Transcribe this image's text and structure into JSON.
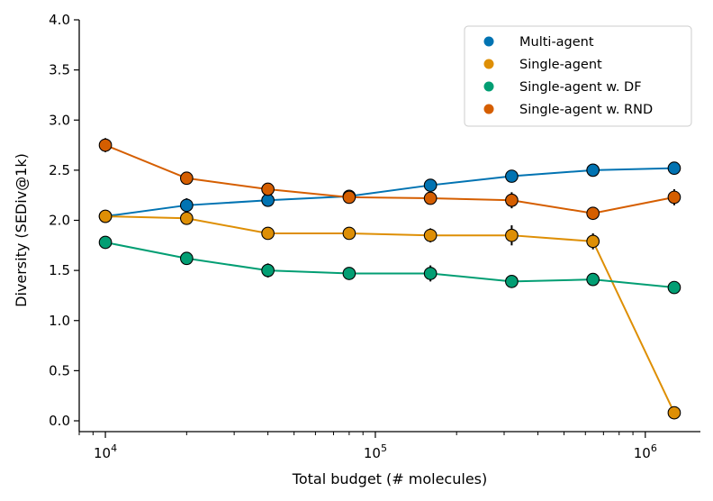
{
  "chart_data": {
    "type": "line",
    "title": "",
    "xlabel": "Total budget (# molecules)",
    "ylabel": "Diversity (SEDiv@1k)",
    "xscale": "log",
    "xlim": [
      8000,
      1600000
    ],
    "ylim": [
      -0.1,
      4.0
    ],
    "x": [
      10000,
      20000,
      40000,
      80000,
      160000,
      320000,
      640000,
      1280000
    ],
    "x_ticks": [
      {
        "value": 10000,
        "base": "10",
        "exp": "4"
      },
      {
        "value": 100000,
        "base": "10",
        "exp": "5"
      },
      {
        "value": 1000000,
        "base": "10",
        "exp": "6"
      }
    ],
    "y_ticks": [
      "0.0",
      "0.5",
      "1.0",
      "1.5",
      "2.0",
      "2.5",
      "3.0",
      "3.5",
      "4.0"
    ],
    "legend_position": "top-right",
    "series": [
      {
        "name": "Multi-agent",
        "color": "#0173b2",
        "values": [
          2.04,
          2.15,
          2.2,
          2.24,
          2.35,
          2.44,
          2.5,
          2.52
        ],
        "errors": [
          0.03,
          0.07,
          0.06,
          0.04,
          0.04,
          0.04,
          0.05,
          0.04
        ]
      },
      {
        "name": "Single-agent",
        "color": "#de8f05",
        "values": [
          2.04,
          2.02,
          1.87,
          1.87,
          1.85,
          1.85,
          1.79,
          0.08
        ],
        "errors": [
          0.05,
          0.05,
          0.06,
          0.05,
          0.07,
          0.1,
          0.08,
          0.03
        ]
      },
      {
        "name": "Single-agent w. DF",
        "color": "#029e73",
        "values": [
          1.78,
          1.62,
          1.5,
          1.47,
          1.47,
          1.39,
          1.41,
          1.33
        ],
        "errors": [
          0.05,
          0.04,
          0.07,
          0.06,
          0.08,
          0.04,
          0.04,
          0.03
        ]
      },
      {
        "name": "Single-agent w. RND",
        "color": "#d55e00",
        "values": [
          2.75,
          2.42,
          2.31,
          2.23,
          2.22,
          2.2,
          2.07,
          2.23
        ],
        "errors": [
          0.07,
          0.05,
          0.06,
          0.06,
          0.05,
          0.08,
          0.06,
          0.08
        ]
      }
    ]
  }
}
